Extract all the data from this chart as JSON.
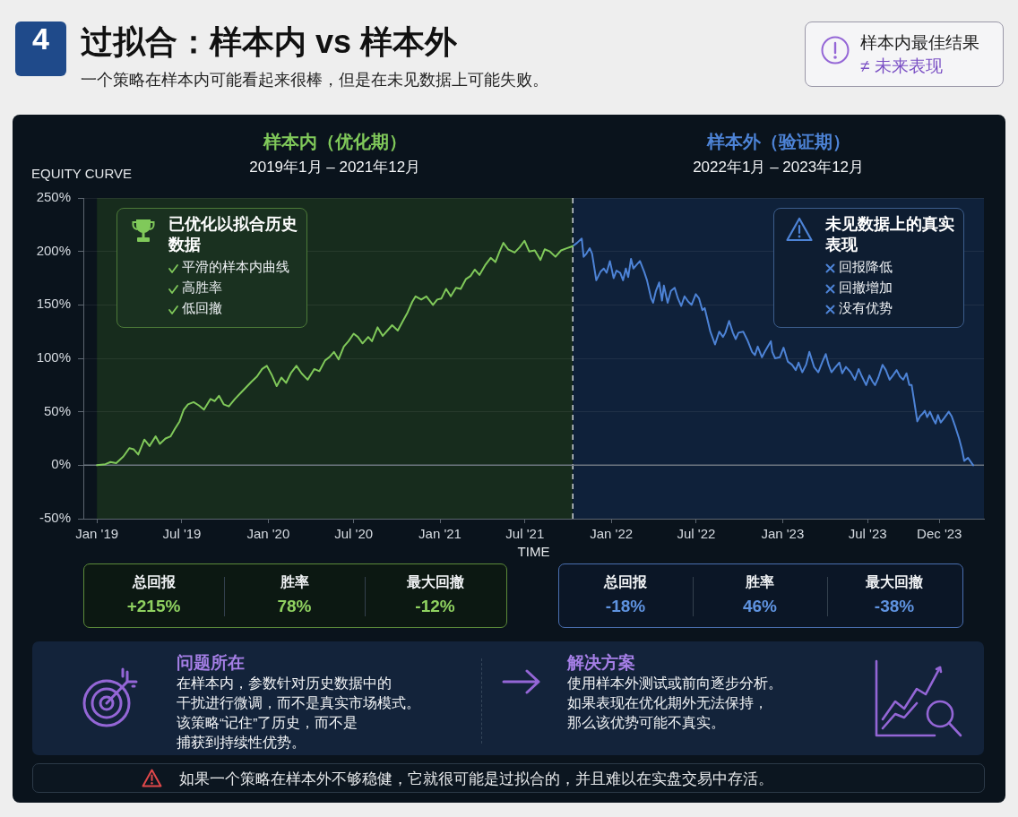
{
  "chart_data": {
    "type": "line",
    "title": "过拟合：样本内 vs 样本外",
    "subtitle": "一个策略在样本内可能看起来很棒，但是在未见数据上可能失败。",
    "xlabel": "TIME",
    "ylabel": "EQUITY CURVE",
    "annotations": [
      "4",
      "样本内最佳结果",
      "≠ 未来表现",
      "2019年1月 – 2021年12月",
      "2022年1月 – 2023年12月",
      "已优化以拟合历史数据",
      "平滑的样本内曲线",
      "高胜率",
      "低回撤",
      "未见数据上的真实表现",
      "回报降低",
      "回撤增加",
      "没有优势",
      "总回报",
      "+215%",
      "胜率",
      "78%",
      "最大回撤",
      "-12%",
      "总回报",
      "-18%",
      "胜率",
      "46%",
      "最大回撤",
      "-38%",
      "问题所在",
      "在样本内，参数针对历史数据中的",
      "干扰进行微调，而不是真实市场模式。",
      "该策略“记住”了历史，而不是",
      "捕获到持续性优势。",
      "解决方案",
      "使用样本外测试或前向逐步分析。",
      "如果表现在优化期外无法保持，",
      "那么该优势可能不真实。",
      "如果一个策略在样本外不够稳健，它就很可能是过拟合的，并且难以在实盘交易中存活。"
    ],
    "series": [
      {
        "color": "#80c95a",
        "x": [
          "2019-01-01",
          "2019-01-19",
          "2019-01-30",
          "2019-02-11",
          "2019-02-26",
          "2019-03-11",
          "2019-03-20",
          "2019-03-30",
          "2019-04-12",
          "2019-04-23",
          "2019-05-06",
          "2019-05-15",
          "2019-05-27",
          "2019-06-07",
          "2019-06-16",
          "2019-06-26",
          "2019-07-05",
          "2019-07-14",
          "2019-07-26",
          "2019-08-06",
          "2019-08-17",
          "2019-08-31",
          "2019-09-09",
          "2019-09-18",
          "2019-09-28",
          "2019-10-09",
          "2019-10-22",
          "2019-11-04",
          "2019-11-15",
          "2019-11-26",
          "2019-12-08",
          "2019-12-19",
          "2019-12-29",
          "2020-01-09",
          "2020-01-19",
          "2020-01-29",
          "2020-02-08",
          "2020-02-18",
          "2020-03-01",
          "2020-03-12",
          "2020-03-25",
          "2020-04-08",
          "2020-04-19",
          "2020-05-01",
          "2020-05-10",
          "2020-05-20",
          "2020-05-30",
          "2020-06-10",
          "2020-06-20",
          "2020-07-01",
          "2020-07-10",
          "2020-07-20",
          "2020-08-01",
          "2020-08-09",
          "2020-08-21",
          "2020-09-01",
          "2020-09-13",
          "2020-09-21",
          "2020-10-03",
          "2020-10-14",
          "2020-10-24",
          "2020-11-03",
          "2020-11-10",
          "2020-11-22",
          "2020-12-03",
          "2020-12-17",
          "2020-12-26",
          "2021-01-04",
          "2021-01-14",
          "2021-01-24",
          "2021-02-04",
          "2021-02-14",
          "2021-02-25",
          "2021-03-07",
          "2021-03-16",
          "2021-03-26",
          "2021-04-07",
          "2021-04-19",
          "2021-04-29",
          "2021-05-08",
          "2021-05-16",
          "2021-05-26",
          "2021-06-09",
          "2021-06-20",
          "2021-06-30",
          "2021-07-10",
          "2021-07-22",
          "2021-08-03",
          "2021-08-12",
          "2021-08-23",
          "2021-09-04",
          "2021-09-16",
          "2021-09-28",
          "2021-10-11"
        ],
        "values": [
          0,
          1,
          3,
          2,
          8,
          16,
          15,
          10,
          24,
          18,
          27,
          20,
          25,
          27,
          34,
          41,
          52,
          57,
          59,
          56,
          52,
          62,
          60,
          65,
          57,
          55,
          62,
          68,
          73,
          78,
          83,
          90,
          93,
          84,
          74,
          82,
          77,
          86,
          93,
          86,
          80,
          90,
          88,
          98,
          101,
          106,
          99,
          111,
          116,
          123,
          120,
          114,
          120,
          116,
          129,
          121,
          127,
          131,
          126,
          135,
          143,
          153,
          158,
          155,
          158,
          150,
          155,
          156,
          165,
          158,
          166,
          165,
          174,
          177,
          183,
          178,
          187,
          194,
          190,
          200,
          208,
          202,
          199,
          204,
          210,
          200,
          201,
          192,
          202,
          200,
          195,
          201,
          203,
          205
        ]
      },
      {
        "color": "#4d83d6",
        "x": [
          "2021-10-11",
          "2021-10-20",
          "2021-10-30",
          "2021-11-03",
          "2021-11-09",
          "2021-11-16",
          "2021-11-21",
          "2021-11-30",
          "2021-12-09",
          "2021-12-16",
          "2021-12-22",
          "2021-12-29",
          "2022-01-06",
          "2022-01-12",
          "2022-01-20",
          "2022-01-26",
          "2022-02-01",
          "2022-02-06",
          "2022-02-12",
          "2022-02-17",
          "2022-02-23",
          "2022-03-03",
          "2022-03-12",
          "2022-03-18",
          "2022-03-27",
          "2022-03-31",
          "2022-04-06",
          "2022-04-13",
          "2022-04-19",
          "2022-04-23",
          "2022-05-01",
          "2022-05-08",
          "2022-05-16",
          "2022-05-23",
          "2022-05-30",
          "2022-06-06",
          "2022-06-14",
          "2022-06-21",
          "2022-06-30",
          "2022-07-07",
          "2022-07-14",
          "2022-07-19",
          "2022-07-25",
          "2022-07-31",
          "2022-08-10",
          "2022-08-19",
          "2022-08-27",
          "2022-09-01",
          "2022-09-09",
          "2022-09-17",
          "2022-09-23",
          "2022-09-29",
          "2022-10-09",
          "2022-10-18",
          "2022-10-28",
          "2022-11-03",
          "2022-11-09",
          "2022-11-18",
          "2022-11-25",
          "2022-12-03",
          "2022-12-07",
          "2022-12-10",
          "2022-12-16",
          "2022-12-26",
          "2023-01-03",
          "2023-01-12",
          "2023-01-21",
          "2023-01-29",
          "2023-02-04",
          "2023-02-12",
          "2023-02-20",
          "2023-02-27",
          "2023-03-09",
          "2023-03-18",
          "2023-03-27",
          "2023-04-03",
          "2023-04-09",
          "2023-04-15",
          "2023-04-24",
          "2023-05-02",
          "2023-05-08",
          "2023-05-16",
          "2023-05-26",
          "2023-06-04",
          "2023-06-12",
          "2023-06-19",
          "2023-06-28",
          "2023-07-05",
          "2023-07-12",
          "2023-07-17",
          "2023-07-24",
          "2023-08-02",
          "2023-08-09",
          "2023-08-17",
          "2023-08-24",
          "2023-09-01",
          "2023-09-08",
          "2023-09-15",
          "2023-09-22",
          "2023-09-28",
          "2023-10-03",
          "2023-10-08",
          "2023-10-15",
          "2023-10-21",
          "2023-10-26",
          "2023-10-31",
          "2023-11-05",
          "2023-11-11",
          "2023-11-18",
          "2023-11-23",
          "2023-11-28",
          "2023-12-04",
          "2023-12-11",
          "2023-12-21",
          "2023-12-27",
          "2024-01-04",
          "2024-01-12",
          "2024-01-18",
          "2024-01-23",
          "2024-01-31",
          "2024-02-11"
        ],
        "values": [
          205,
          208,
          212,
          195,
          198,
          203,
          198,
          173,
          181,
          184,
          180,
          191,
          175,
          182,
          180,
          173,
          184,
          176,
          193,
          184,
          187,
          191,
          181,
          173,
          156,
          152,
          163,
          171,
          154,
          168,
          152,
          163,
          166,
          156,
          149,
          158,
          153,
          150,
          160,
          156,
          145,
          147,
          136,
          125,
          113,
          125,
          120,
          124,
          135,
          124,
          118,
          124,
          125,
          117,
          106,
          103,
          111,
          101,
          107,
          113,
          116,
          106,
          100,
          101,
          110,
          97,
          94,
          89,
          96,
          87,
          94,
          106,
          92,
          87,
          97,
          104,
          94,
          87,
          92,
          96,
          86,
          92,
          87,
          80,
          90,
          83,
          75,
          84,
          78,
          75,
          82,
          94,
          89,
          80,
          84,
          89,
          83,
          80,
          86,
          75,
          75,
          61,
          41,
          46,
          48,
          51,
          45,
          50,
          43,
          39,
          47,
          40,
          44,
          50,
          46,
          36,
          25,
          15,
          4,
          7,
          0
        ]
      }
    ],
    "xlim": [
      "2018-12-03",
      "2024-03-05"
    ],
    "xticks": [
      {
        "value": "2019-01",
        "label": "Jan '19"
      },
      {
        "value": "2019-07",
        "label": "Jul '19"
      },
      {
        "value": "2020-01",
        "label": "Jan '20"
      },
      {
        "value": "2020-07",
        "label": "Jul '20"
      },
      {
        "value": "2021-01",
        "label": "Jan '21"
      },
      {
        "value": "2021-07",
        "label": "Jul '21"
      },
      {
        "value": "2022-01",
        "label": "Jan '22"
      },
      {
        "value": "2022-07",
        "label": "Jul '22"
      },
      {
        "value": "2023-01",
        "label": "Jan '23"
      },
      {
        "value": "2023-07",
        "label": "Jul '23"
      },
      {
        "value": "2023-12",
        "label": "Dec '23"
      }
    ],
    "ylim": [
      -50,
      250
    ],
    "yticks": [
      {
        "value": -50,
        "label": "-50%"
      },
      {
        "value": 0,
        "label": "0%"
      },
      {
        "value": 50,
        "label": "50%"
      },
      {
        "value": 100,
        "label": "100%"
      },
      {
        "value": 150,
        "label": "150%"
      },
      {
        "value": 200,
        "label": "200%"
      },
      {
        "value": 250,
        "label": "250%"
      }
    ],
    "bands": [
      {
        "axis": "x",
        "from": "2019-01-01",
        "to": "2021-10-11",
        "label": "样本内（优化期）",
        "color": "#172c1d"
      },
      {
        "axis": "x",
        "from": "2021-10-11",
        "to": "2024-03-05",
        "label": "样本外（验证期）",
        "color": "#0f213a"
      }
    ],
    "ref_lines": [
      {
        "axis": "x",
        "value": "2021-10-11",
        "color": "#cfd4da",
        "line_style": "dashed"
      },
      {
        "axis": "y",
        "value": 0,
        "color": "#6d7680"
      }
    ],
    "grid": "y"
  }
}
